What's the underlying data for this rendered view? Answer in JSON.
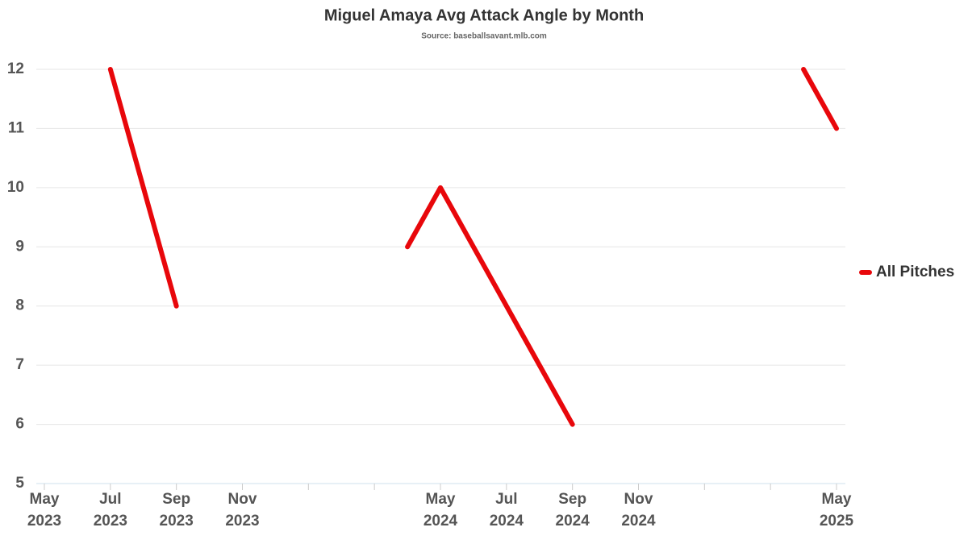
{
  "chart_data": {
    "type": "line",
    "title": "Miguel Amaya Avg Attack Angle by Month",
    "subtitle": "Source: baseballsavant.mlb.com",
    "categories": [
      "May 2023",
      null,
      "Jul 2023",
      null,
      "Sep 2023",
      null,
      "Nov 2023",
      null,
      null,
      null,
      null,
      null,
      "May 2024",
      null,
      "Jul 2024",
      null,
      "Sep 2024",
      null,
      "Nov 2024",
      null,
      null,
      null,
      null,
      null,
      "May 2025"
    ],
    "series": [
      {
        "name": "All Pitches",
        "color": "#e8070b",
        "values": [
          null,
          null,
          12,
          10,
          8,
          null,
          null,
          null,
          null,
          null,
          null,
          9,
          10,
          9,
          8,
          7,
          6,
          null,
          null,
          null,
          null,
          null,
          null,
          12,
          11
        ]
      }
    ],
    "ylim": [
      5,
      12
    ],
    "yticks": [
      5,
      6,
      7,
      8,
      9,
      10,
      11,
      12
    ],
    "grid": true,
    "legend": "right"
  }
}
